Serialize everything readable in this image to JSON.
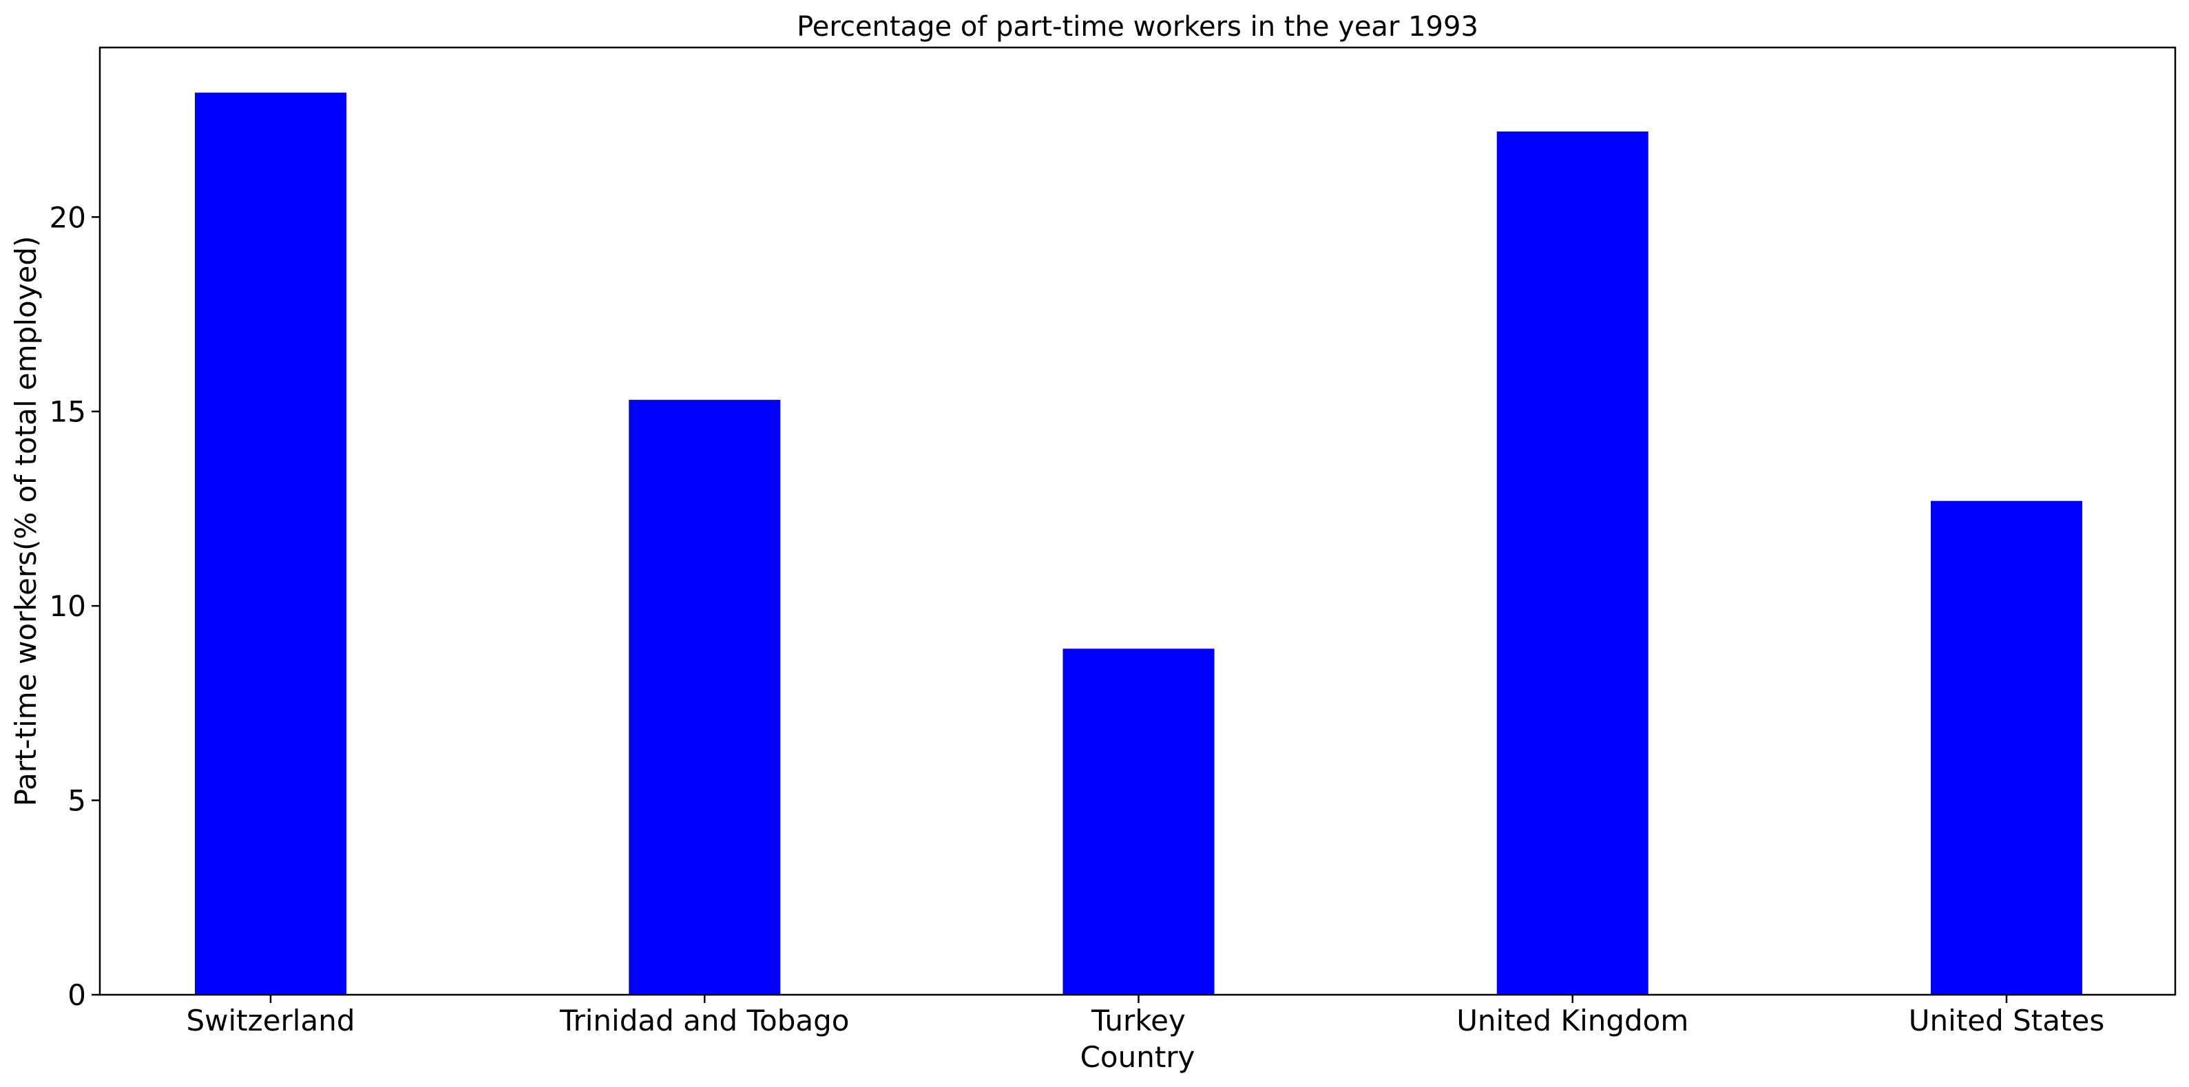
{
  "chart_data": {
    "type": "bar",
    "title": "Percentage of part-time workers in the year 1993",
    "xlabel": "Country",
    "ylabel": "Part-time workers(% of total employed)",
    "categories": [
      "Switzerland",
      "Trinidad and Tobago",
      "Turkey",
      "United Kingdom",
      "United States"
    ],
    "values": [
      23.2,
      15.3,
      8.9,
      22.2,
      12.7
    ],
    "ylim": [
      0,
      24.36
    ],
    "yticks": [
      0,
      5,
      10,
      15,
      20
    ],
    "bar_color": "#0000ff",
    "grid": false,
    "legend": "none"
  }
}
